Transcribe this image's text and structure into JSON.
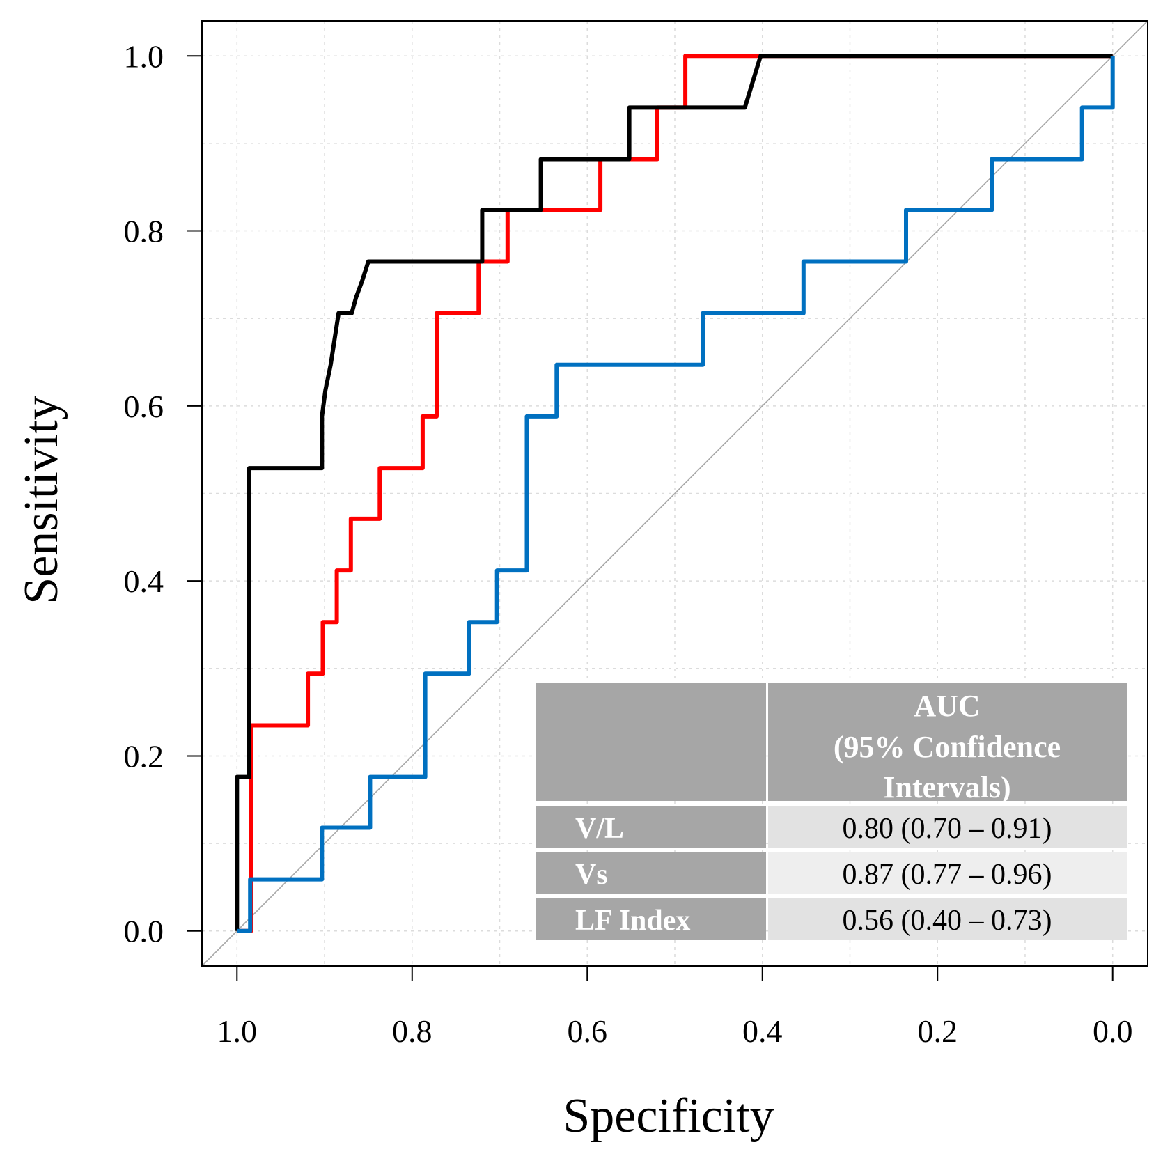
{
  "chart_data": {
    "type": "line",
    "title": "",
    "xlabel": "Specificity",
    "ylabel": "Sensitivity",
    "xlim": [
      1.04,
      -0.04
    ],
    "ylim": [
      -0.04,
      1.04
    ],
    "x_ticks": [
      "1.0",
      "0.8",
      "0.6",
      "0.4",
      "0.2",
      "0.0"
    ],
    "y_ticks": [
      "0.0",
      "0.2",
      "0.4",
      "0.6",
      "0.8",
      "1.0"
    ],
    "grid": true,
    "reference_line": "diagonal",
    "series": [
      {
        "name": "V/L",
        "color": "#ff0000",
        "points": [
          [
            1.0,
            0.0
          ],
          [
            0.984,
            0.0
          ],
          [
            0.984,
            0.235
          ],
          [
            0.919,
            0.235
          ],
          [
            0.919,
            0.294
          ],
          [
            0.902,
            0.294
          ],
          [
            0.902,
            0.353
          ],
          [
            0.886,
            0.353
          ],
          [
            0.886,
            0.412
          ],
          [
            0.87,
            0.412
          ],
          [
            0.87,
            0.471
          ],
          [
            0.837,
            0.471
          ],
          [
            0.837,
            0.529
          ],
          [
            0.788,
            0.529
          ],
          [
            0.788,
            0.588
          ],
          [
            0.772,
            0.588
          ],
          [
            0.772,
            0.706
          ],
          [
            0.724,
            0.706
          ],
          [
            0.724,
            0.765
          ],
          [
            0.691,
            0.765
          ],
          [
            0.691,
            0.824
          ],
          [
            0.585,
            0.824
          ],
          [
            0.585,
            0.882
          ],
          [
            0.52,
            0.882
          ],
          [
            0.52,
            0.941
          ],
          [
            0.488,
            0.941
          ],
          [
            0.488,
            1.0
          ],
          [
            0.0,
            1.0
          ]
        ]
      },
      {
        "name": "Vs",
        "color": "#000000",
        "points": [
          [
            1.0,
            0.0
          ],
          [
            1.0,
            0.176
          ],
          [
            0.986,
            0.176
          ],
          [
            0.986,
            0.529
          ],
          [
            0.903,
            0.529
          ],
          [
            0.903,
            0.588
          ],
          [
            0.899,
            0.618
          ],
          [
            0.893,
            0.647
          ],
          [
            0.884,
            0.706
          ],
          [
            0.869,
            0.706
          ],
          [
            0.864,
            0.724
          ],
          [
            0.857,
            0.743
          ],
          [
            0.85,
            0.765
          ],
          [
            0.72,
            0.765
          ],
          [
            0.72,
            0.824
          ],
          [
            0.653,
            0.824
          ],
          [
            0.653,
            0.882
          ],
          [
            0.552,
            0.882
          ],
          [
            0.552,
            0.941
          ],
          [
            0.42,
            0.941
          ],
          [
            0.402,
            1.0
          ],
          [
            0.0,
            1.0
          ]
        ]
      },
      {
        "name": "LF Index",
        "color": "#0070c0",
        "points": [
          [
            1.0,
            0.0
          ],
          [
            0.985,
            0.0
          ],
          [
            0.985,
            0.059
          ],
          [
            0.903,
            0.059
          ],
          [
            0.903,
            0.118
          ],
          [
            0.848,
            0.118
          ],
          [
            0.848,
            0.176
          ],
          [
            0.785,
            0.176
          ],
          [
            0.785,
            0.294
          ],
          [
            0.735,
            0.294
          ],
          [
            0.735,
            0.353
          ],
          [
            0.703,
            0.353
          ],
          [
            0.703,
            0.412
          ],
          [
            0.669,
            0.412
          ],
          [
            0.669,
            0.588
          ],
          [
            0.635,
            0.588
          ],
          [
            0.635,
            0.647
          ],
          [
            0.468,
            0.647
          ],
          [
            0.468,
            0.706
          ],
          [
            0.353,
            0.706
          ],
          [
            0.353,
            0.765
          ],
          [
            0.236,
            0.765
          ],
          [
            0.236,
            0.824
          ],
          [
            0.138,
            0.824
          ],
          [
            0.138,
            0.882
          ],
          [
            0.035,
            0.882
          ],
          [
            0.035,
            0.941
          ],
          [
            0.0,
            0.941
          ],
          [
            0.0,
            1.0
          ]
        ]
      }
    ],
    "legend_table": {
      "header": [
        "AUC",
        "(95% Confidence",
        "Intervals)"
      ],
      "rows": [
        {
          "name": "V/L",
          "value": "0.80 (0.70 – 0.91)"
        },
        {
          "name": "Vs",
          "value": "0.87 (0.77 – 0.96)"
        },
        {
          "name": "LF Index",
          "value": "0.56 (0.40 – 0.73)"
        }
      ],
      "position": "bottom-right"
    }
  }
}
